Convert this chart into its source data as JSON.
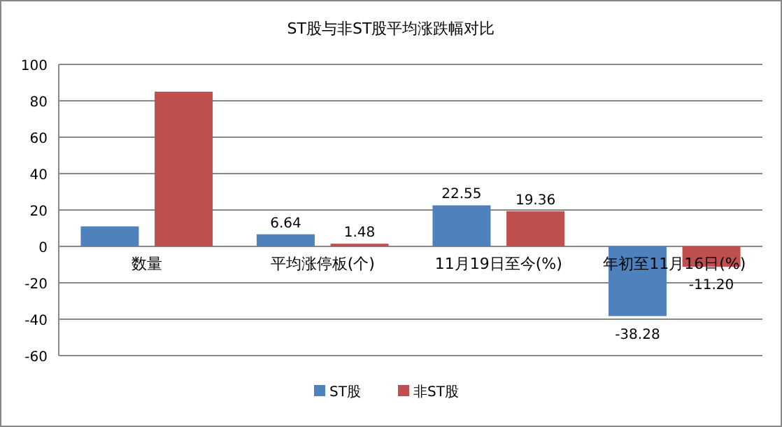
{
  "chart_data": {
    "type": "bar",
    "title": "ST股与非ST股平均涨跌幅对比",
    "categories": [
      "数量",
      "平均涨停板(个)",
      "11月19日至今(%)",
      "年初至11月16日(%)"
    ],
    "series": [
      {
        "name": "ST股",
        "color": "#4f81bd",
        "values": [
          11,
          6.64,
          22.55,
          -38.28
        ],
        "value_labels": [
          null,
          "6.64",
          "22.55",
          "-38.28"
        ]
      },
      {
        "name": "非ST股",
        "color": "#c0504d",
        "values": [
          85,
          1.48,
          19.36,
          -11.2
        ],
        "value_labels": [
          null,
          "1.48",
          "19.36",
          "-11.20"
        ]
      }
    ],
    "ylim": [
      -60,
      100
    ],
    "yticks": [
      -60,
      -40,
      -20,
      0,
      20,
      40,
      60,
      80,
      100
    ],
    "grid": "y",
    "legend": "bottom"
  }
}
